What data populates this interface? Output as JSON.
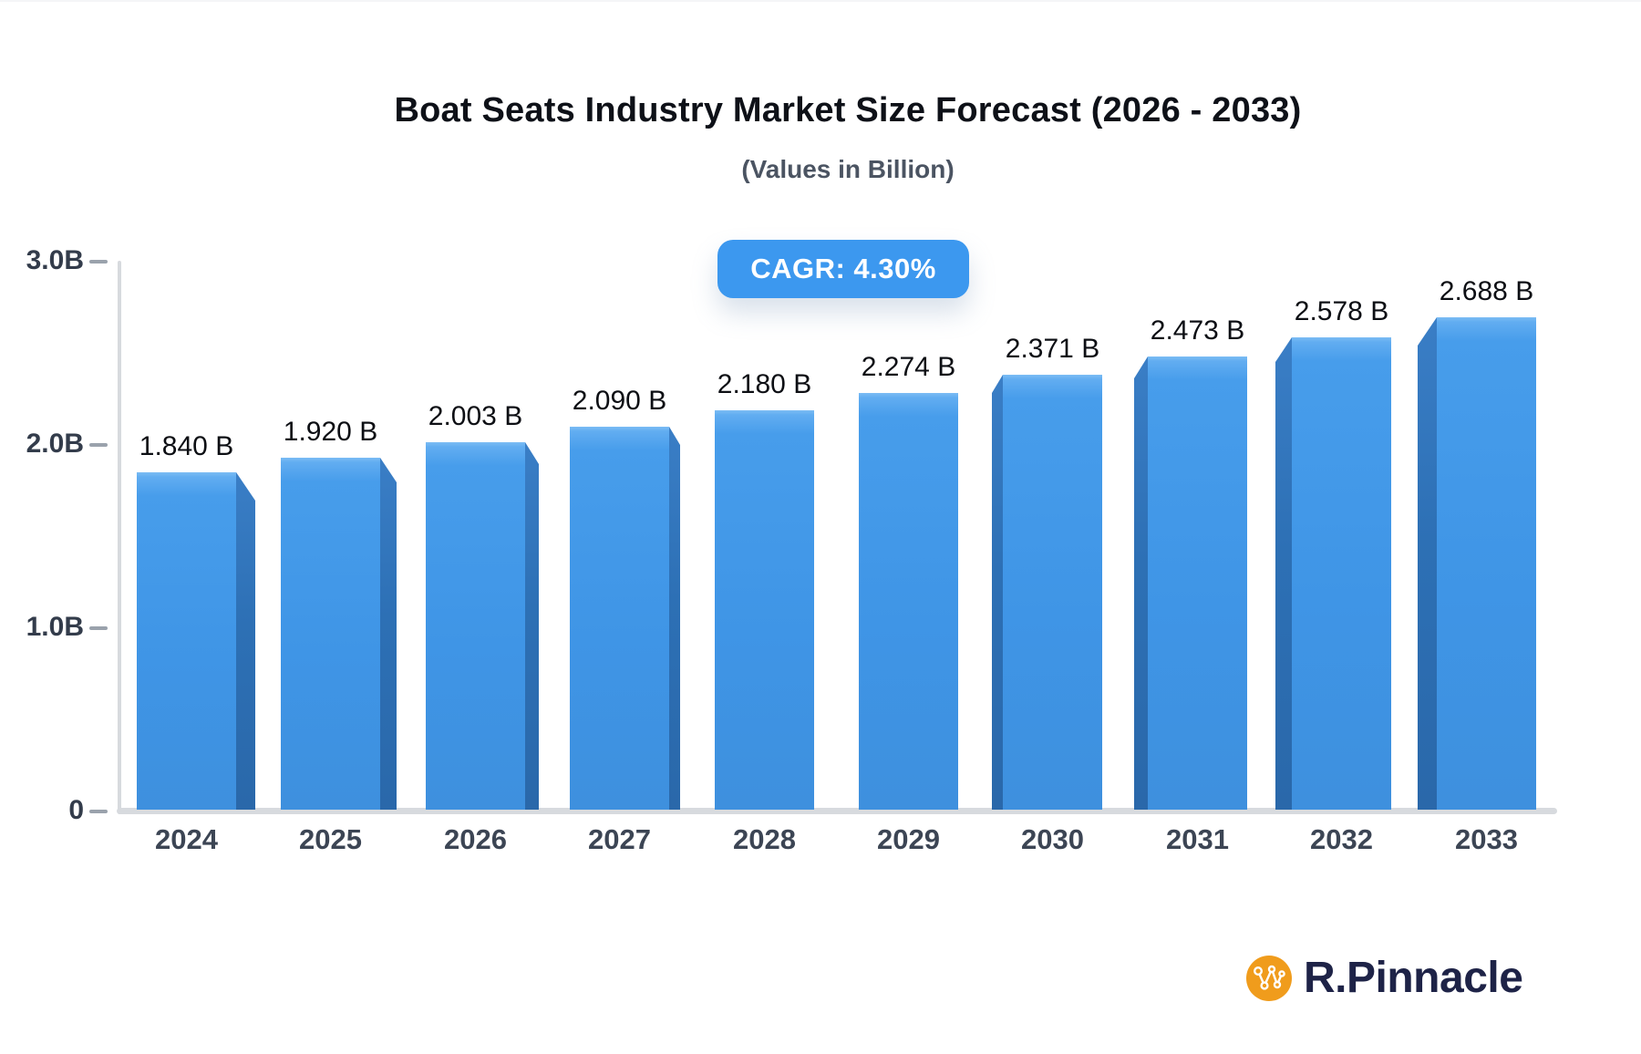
{
  "chart_data": {
    "type": "bar",
    "title": "Boat Seats Industry Market Size Forecast (2026 - 2033)",
    "subtitle": "(Values in Billion)",
    "badge_label": "CAGR: 4.30%",
    "cagr_percent": 4.3,
    "categories": [
      "2024",
      "2025",
      "2026",
      "2027",
      "2028",
      "2029",
      "2030",
      "2031",
      "2032",
      "2033"
    ],
    "values": [
      1.84,
      1.92,
      2.003,
      2.09,
      2.18,
      2.274,
      2.371,
      2.473,
      2.578,
      2.688
    ],
    "value_labels": [
      "1.840 B",
      "1.920 B",
      "2.003 B",
      "2.090 B",
      "2.180 B",
      "2.274 B",
      "2.371 B",
      "2.473 B",
      "2.578 B",
      "2.688 B"
    ],
    "y_ticks": [
      {
        "label": "3.0B",
        "value": 3.0
      },
      {
        "label": "2.0B",
        "value": 2.0
      },
      {
        "label": "1.0B",
        "value": 1.0
      },
      {
        "label": "0",
        "value": 0.0
      }
    ],
    "ylim": [
      0,
      3.0
    ],
    "grid": false,
    "legend": false,
    "bar_color": "#4299ea",
    "bar_side_color": "#2d70b5",
    "axis_color": "#d7dade",
    "value_label_color": "#0d0f14"
  },
  "badge": {
    "label": "CAGR: 4.30%",
    "bg_color": "#3c98ef",
    "text_color": "#ffffff"
  },
  "branding": {
    "name": "R.Pinnacle",
    "icon": "network-nodes-icon",
    "icon_color": "#f09c1c",
    "text_color": "#1e2347"
  }
}
